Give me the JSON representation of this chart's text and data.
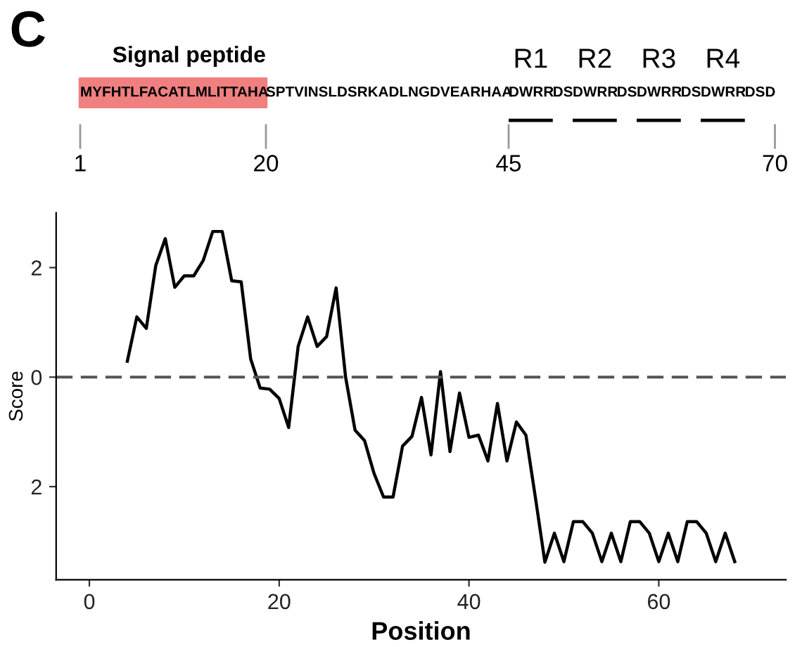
{
  "chart_data": [
    {
      "type": "other",
      "annotations": [
        "C",
        "Signal peptide",
        "MYFHTLFACATLMLITTAHA",
        "SPTVINSLDSRKADLNGDVEARHAA",
        "DWRR",
        "DS",
        "DWRR",
        "DS",
        "DWRR",
        "DS",
        "DWRR",
        "DSD",
        "R1",
        "R2",
        "R3",
        "R4",
        "1",
        "20",
        "45",
        "70"
      ]
    },
    {
      "type": "line",
      "xlabel": "Position",
      "ylabel": "Score",
      "x": [
        4,
        5,
        6,
        7,
        8,
        9,
        10,
        11,
        12,
        13,
        14,
        15,
        16,
        17,
        18,
        19,
        20,
        21,
        22,
        23,
        24,
        25,
        26,
        27,
        28,
        29,
        30,
        31,
        32,
        33,
        34,
        35,
        36,
        37,
        38,
        39,
        40,
        41,
        42,
        43,
        44,
        45,
        46,
        47,
        48,
        49,
        50,
        51,
        52,
        53,
        54,
        55,
        56,
        57,
        58,
        59,
        60,
        61,
        62,
        63,
        64,
        65,
        66,
        67,
        68
      ],
      "series": [
        {
          "color": "#000000",
          "values": [
            0.29,
            1.1,
            0.89,
            2.04,
            2.53,
            1.64,
            1.85,
            1.85,
            2.13,
            2.66,
            2.66,
            1.76,
            1.74,
            0.33,
            -0.2,
            -0.22,
            -0.39,
            -0.92,
            0.56,
            1.1,
            0.56,
            0.74,
            1.63,
            0.0,
            -0.97,
            -1.16,
            -1.76,
            -2.19,
            -2.19,
            -1.26,
            -1.08,
            -0.37,
            -1.42,
            0.1,
            -1.36,
            -0.29,
            -1.1,
            -1.06,
            -1.53,
            -0.48,
            -1.53,
            -0.82,
            -1.06,
            -2.2,
            -3.38,
            -2.85,
            -3.37,
            -2.64,
            -2.64,
            -2.85,
            -3.37,
            -2.85,
            -3.37,
            -2.64,
            -2.64,
            -2.85,
            -3.37,
            -2.85,
            -3.37,
            -2.64,
            -2.64,
            -2.85,
            -3.37,
            -2.85,
            -3.37
          ]
        }
      ],
      "xlim": [
        -3.5,
        73.4
      ],
      "ylim": [
        -3.7,
        3.0
      ],
      "xticks": [
        0,
        20,
        40,
        60
      ],
      "yticks": [
        {
          "value": 2,
          "label": "2"
        },
        0,
        {
          "value": -2,
          "label": "2"
        }
      ],
      "ref_lines": [
        {
          "axis": "y",
          "value": 0,
          "color": "#555555",
          "line_style": "dashed"
        }
      ],
      "grid": false,
      "marker": "none",
      "line_style": "solid"
    }
  ]
}
